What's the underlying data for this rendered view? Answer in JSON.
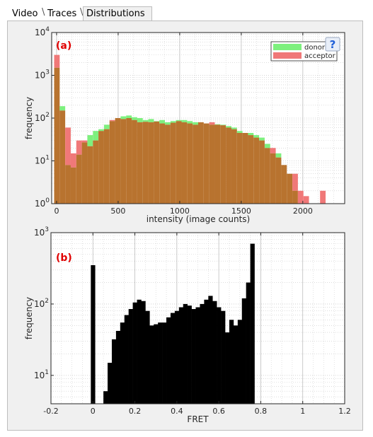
{
  "tabs": [
    {
      "label": "Video"
    },
    {
      "label": "Traces"
    },
    {
      "label": "Distributions"
    }
  ],
  "help_button": {
    "label": "?"
  },
  "colors": {
    "donor": "#7ef07e",
    "acceptor": "#f07878",
    "overlap": "#b8732f",
    "fret": "#000000",
    "panel_label": "#e00000"
  },
  "chart_data": [
    {
      "type": "bar",
      "panel_label": "(a)",
      "xlabel": "intensity (image counts)",
      "ylabel": "frequency",
      "xlim": [
        -40,
        2340
      ],
      "ylim": [
        1,
        10000
      ],
      "y_scale": "log",
      "xticks": [
        0,
        500,
        1000,
        1500,
        2000
      ],
      "xtick_labels": [
        "0",
        "500",
        "1000",
        "1500",
        "2000"
      ],
      "yticks": [
        1,
        10,
        100,
        1000,
        10000
      ],
      "ytick_labels": [
        "10^0",
        "10^1",
        "10^2",
        "10^3",
        "10^4"
      ],
      "grid": true,
      "legend_position": "top-right",
      "bin_width": 45,
      "bin_start": -20,
      "series": [
        {
          "name": "donor",
          "values": [
            1500,
            190,
            8,
            7,
            14,
            27,
            40,
            50,
            55,
            70,
            85,
            100,
            110,
            115,
            105,
            100,
            90,
            95,
            85,
            90,
            80,
            85,
            90,
            90,
            85,
            80,
            80,
            75,
            70,
            72,
            70,
            65,
            60,
            50,
            45,
            45,
            40,
            35,
            25,
            15,
            15,
            8,
            5,
            2,
            0,
            0,
            0,
            0,
            0
          ]
        },
        {
          "name": "acceptor",
          "values": [
            3000,
            150,
            60,
            15,
            30,
            30,
            22,
            30,
            50,
            55,
            90,
            100,
            95,
            100,
            90,
            80,
            82,
            80,
            83,
            75,
            70,
            78,
            85,
            80,
            75,
            70,
            80,
            75,
            80,
            70,
            68,
            60,
            55,
            45,
            45,
            40,
            35,
            30,
            20,
            20,
            12,
            8,
            5,
            5,
            2,
            1.5,
            1,
            0,
            2
          ]
        }
      ]
    },
    {
      "type": "bar",
      "panel_label": "(b)",
      "xlabel": "FRET",
      "ylabel": "frequency",
      "xlim": [
        -0.2,
        1.2
      ],
      "ylim": [
        4,
        1000
      ],
      "y_scale": "log",
      "xticks": [
        -0.2,
        0,
        0.2,
        0.4,
        0.6,
        0.8,
        1,
        1.2
      ],
      "xtick_labels": [
        "-0.2",
        "0",
        "0.2",
        "0.4",
        "0.6",
        "0.8",
        "1",
        "1.2"
      ],
      "yticks": [
        10,
        100,
        1000
      ],
      "ytick_labels": [
        "10^1",
        "10^2",
        "10^3"
      ],
      "grid": true,
      "bin_width": 0.02,
      "bin_start": -0.01,
      "series": [
        {
          "name": "",
          "values": [
            350,
            0,
            0,
            6,
            15,
            32,
            42,
            55,
            70,
            85,
            105,
            115,
            110,
            80,
            50,
            52,
            55,
            55,
            65,
            75,
            80,
            90,
            100,
            95,
            85,
            90,
            100,
            115,
            130,
            110,
            90,
            80,
            40,
            60,
            50,
            60,
            120,
            200,
            700
          ]
        }
      ]
    }
  ]
}
